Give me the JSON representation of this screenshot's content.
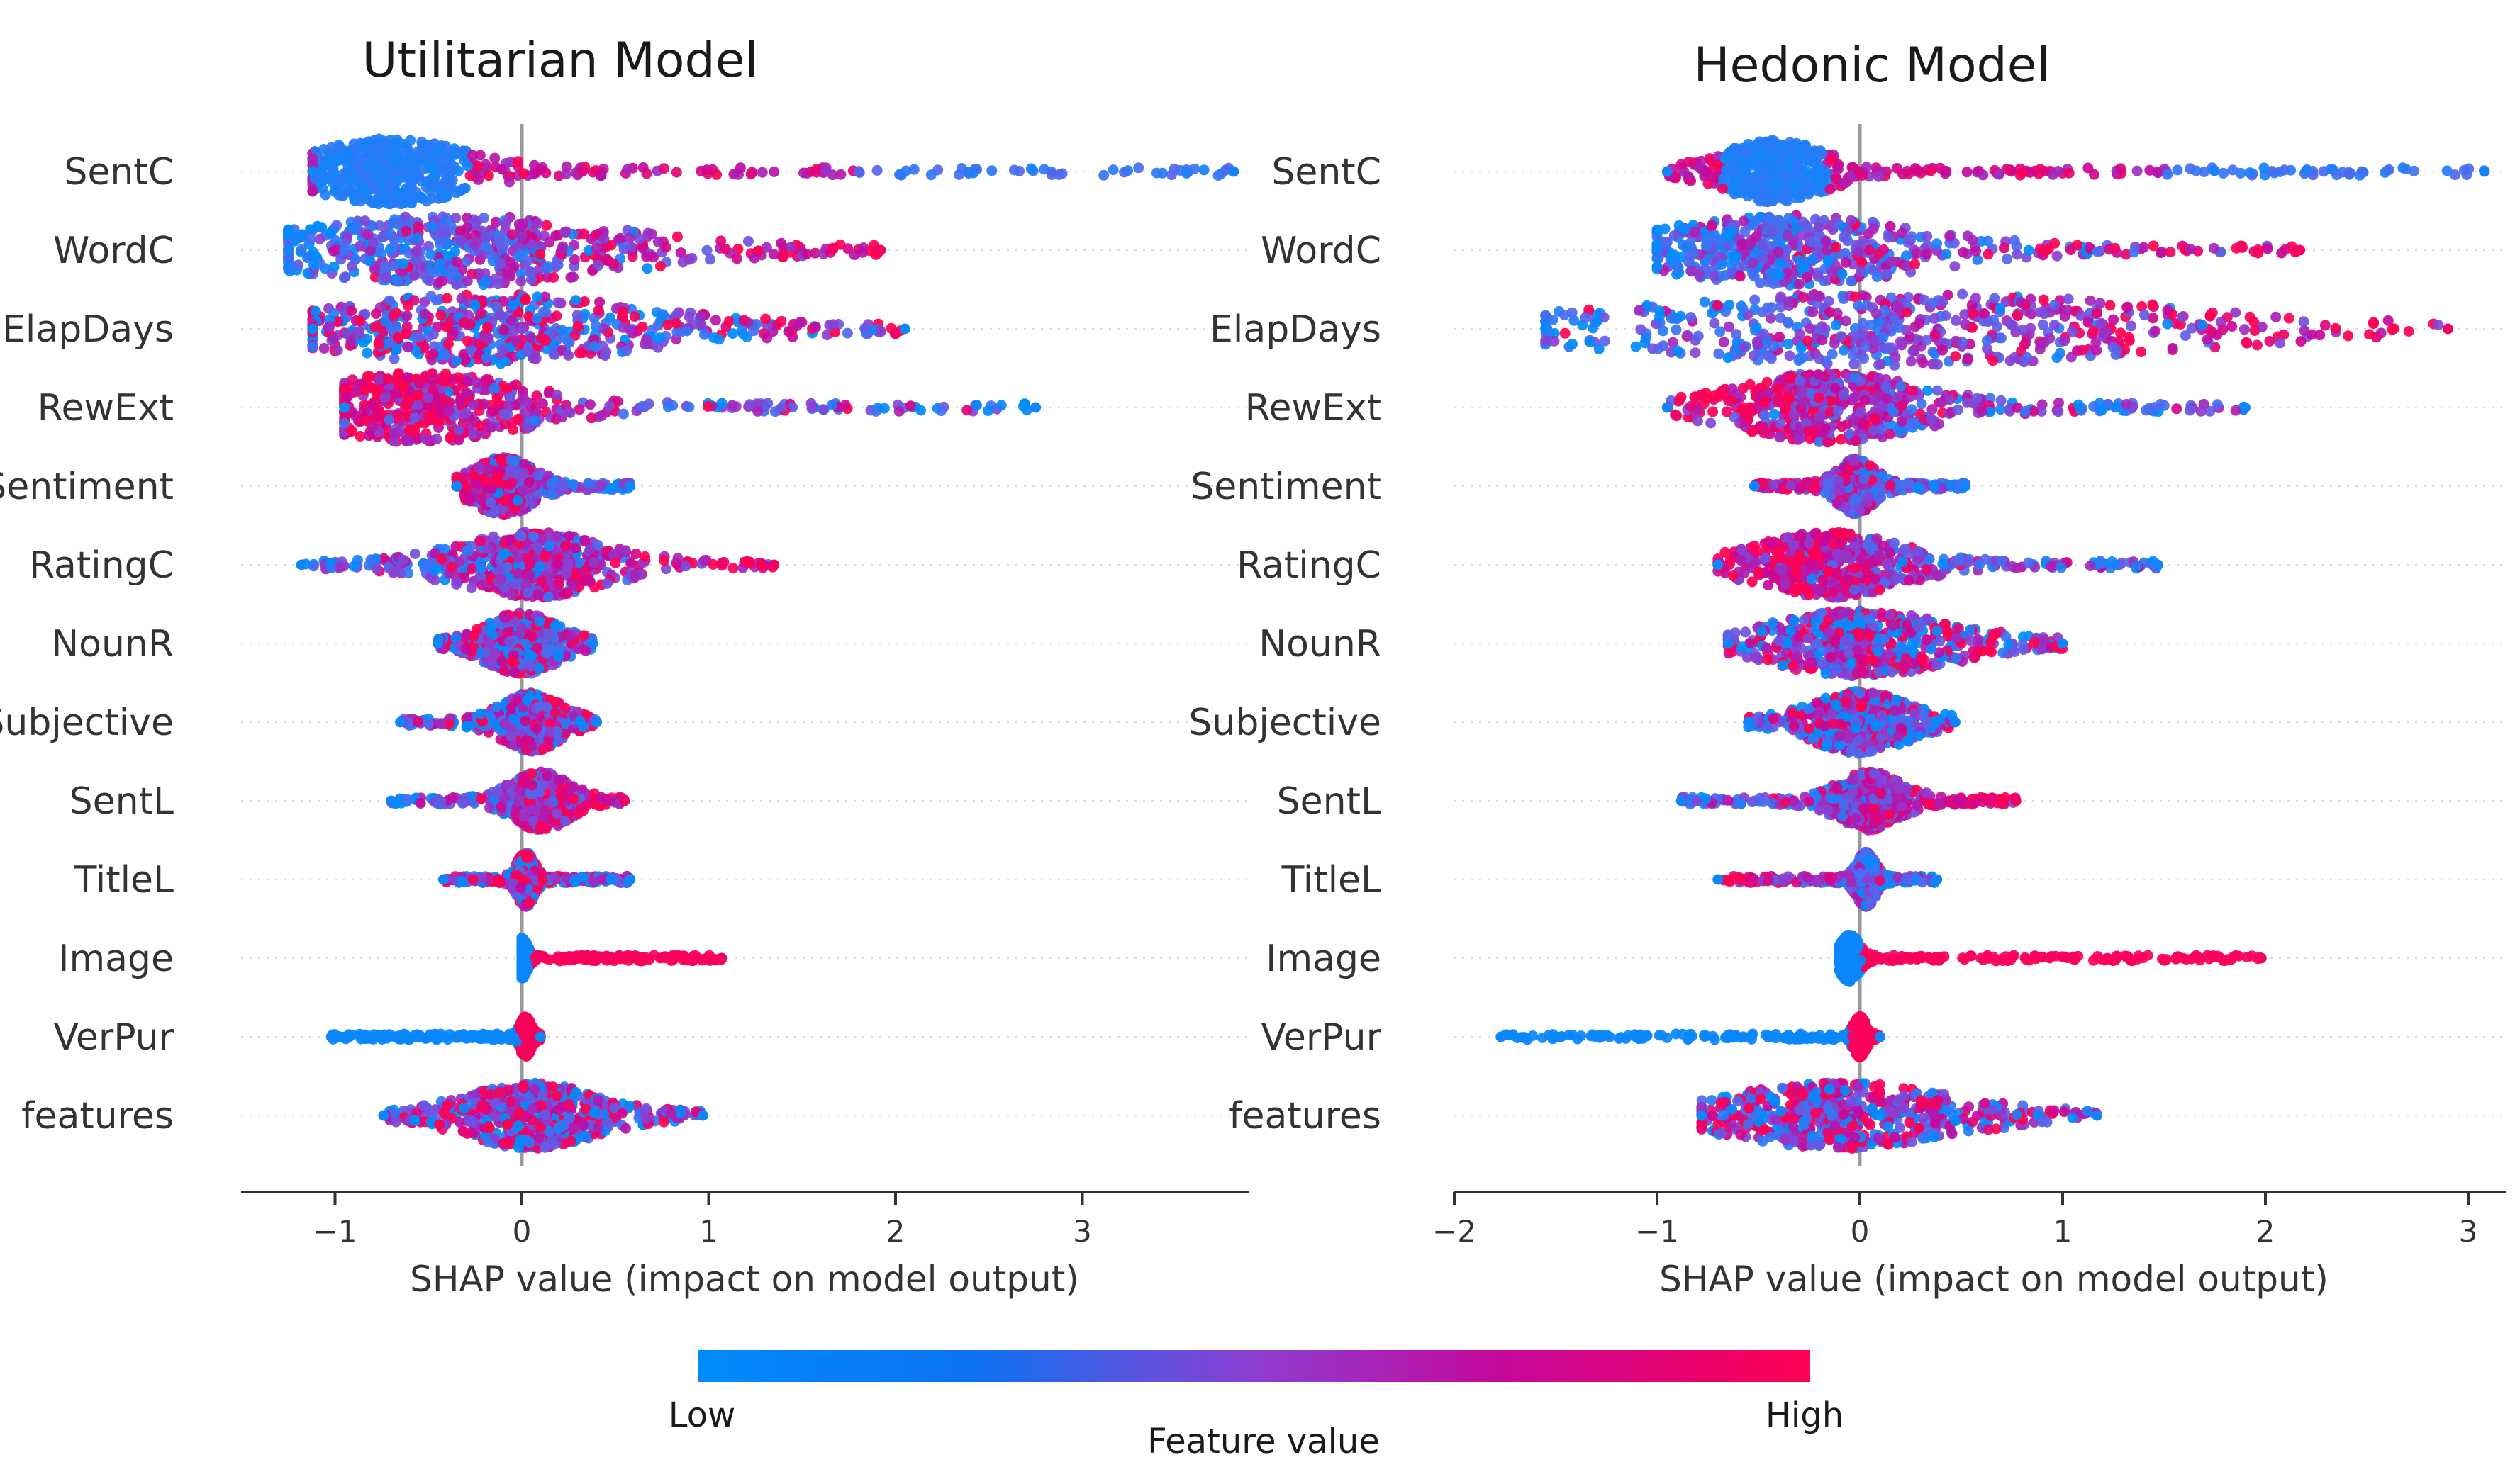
{
  "chart_data": [
    {
      "type": "scatter",
      "subtype": "shap-beeswarm",
      "title": "Utilitarian Model",
      "xlabel": "SHAP value (impact on model output)",
      "xlim": [
        -1.5,
        3.88
      ],
      "xticks": [
        -1,
        0,
        1,
        2,
        3
      ],
      "xtick_labels": [
        "−1",
        "0",
        "1",
        "2",
        "3"
      ],
      "zero_line": 0,
      "grid": "dotted horizontal per feature",
      "features": [
        {
          "name": "SentC",
          "min": -1.12,
          "max": 3.81,
          "mode": -0.7,
          "spread": 0.26,
          "thickness": 0.9,
          "trend": "mixed-low-center"
        },
        {
          "name": "WordC",
          "min": -1.25,
          "max": 1.92,
          "mode": -0.35,
          "spread": 0.55,
          "thickness": 0.95,
          "trend": "increasing"
        },
        {
          "name": "ElapDays",
          "min": -1.12,
          "max": 2.05,
          "mode": -0.2,
          "spread": 0.55,
          "thickness": 0.95,
          "trend": "mixed"
        },
        {
          "name": "RewExt",
          "min": -0.95,
          "max": 2.75,
          "mode": -0.55,
          "spread": 0.35,
          "thickness": 0.95,
          "trend": "decreasing"
        },
        {
          "name": "Sentiment",
          "min": -0.35,
          "max": 0.58,
          "mode": -0.1,
          "spread": 0.1,
          "thickness": 0.8,
          "trend": "decreasing"
        },
        {
          "name": "RatingC",
          "min": -1.18,
          "max": 1.35,
          "mode": 0.05,
          "spread": 0.25,
          "thickness": 0.9,
          "trend": "increasing"
        },
        {
          "name": "NounR",
          "min": -0.45,
          "max": 0.38,
          "mode": 0.0,
          "spread": 0.12,
          "thickness": 0.85,
          "trend": "mixed"
        },
        {
          "name": "Subjective",
          "min": -0.65,
          "max": 0.4,
          "mode": 0.05,
          "spread": 0.1,
          "thickness": 0.8,
          "trend": "mixed"
        },
        {
          "name": "SentL",
          "min": -0.7,
          "max": 0.55,
          "mode": 0.1,
          "spread": 0.1,
          "thickness": 0.8,
          "trend": "increasing"
        },
        {
          "name": "TitleL",
          "min": -0.42,
          "max": 0.58,
          "mode": 0.02,
          "spread": 0.03,
          "thickness": 0.75,
          "trend": "mixed"
        },
        {
          "name": "Image",
          "min": 0.0,
          "max": 1.07,
          "mode": 0.0,
          "spread": 0.02,
          "thickness": 0.55,
          "trend": "split"
        },
        {
          "name": "VerPur",
          "min": -1.02,
          "max": 0.1,
          "mode": 0.02,
          "spread": 0.02,
          "thickness": 0.55,
          "trend": "split-reverse"
        },
        {
          "name": "features",
          "min": -0.74,
          "max": 0.97,
          "mode": 0.05,
          "spread": 0.22,
          "thickness": 0.9,
          "trend": "mixed"
        }
      ]
    },
    {
      "type": "scatter",
      "subtype": "shap-beeswarm",
      "title": "Hedonic Model",
      "xlabel": "SHAP value (impact on model output)",
      "xlim": [
        -2.0,
        3.2
      ],
      "xticks": [
        -2,
        -1,
        0,
        1,
        2,
        3
      ],
      "xtick_labels": [
        "−2",
        "−1",
        "0",
        "1",
        "2",
        "3"
      ],
      "zero_line": 0,
      "grid": "dotted horizontal per feature",
      "features": [
        {
          "name": "SentC",
          "min": -0.95,
          "max": 3.08,
          "mode": -0.42,
          "spread": 0.16,
          "thickness": 0.85,
          "trend": "mixed-low-center"
        },
        {
          "name": "WordC",
          "min": -1.0,
          "max": 2.17,
          "mode": -0.35,
          "spread": 0.4,
          "thickness": 0.95,
          "trend": "increasing"
        },
        {
          "name": "ElapDays",
          "min": -1.55,
          "max": 2.9,
          "mode": 0.2,
          "spread": 0.85,
          "thickness": 1.0,
          "trend": "increasing"
        },
        {
          "name": "RewExt",
          "min": -0.95,
          "max": 1.9,
          "mode": -0.15,
          "spread": 0.28,
          "thickness": 0.95,
          "trend": "decreasing"
        },
        {
          "name": "Sentiment",
          "min": -0.52,
          "max": 0.52,
          "mode": -0.02,
          "spread": 0.06,
          "thickness": 0.75,
          "trend": "decreasing"
        },
        {
          "name": "RatingC",
          "min": -0.7,
          "max": 1.47,
          "mode": -0.15,
          "spread": 0.22,
          "thickness": 0.9,
          "trend": "decreasing"
        },
        {
          "name": "NounR",
          "min": -0.65,
          "max": 1.0,
          "mode": 0.0,
          "spread": 0.28,
          "thickness": 0.9,
          "trend": "mixed"
        },
        {
          "name": "Subjective",
          "min": -0.55,
          "max": 0.47,
          "mode": 0.0,
          "spread": 0.15,
          "thickness": 0.85,
          "trend": "mixed"
        },
        {
          "name": "SentL",
          "min": -0.88,
          "max": 0.77,
          "mode": 0.05,
          "spread": 0.1,
          "thickness": 0.8,
          "trend": "increasing"
        },
        {
          "name": "TitleL",
          "min": -0.7,
          "max": 0.38,
          "mode": 0.03,
          "spread": 0.03,
          "thickness": 0.75,
          "trend": "decreasing"
        },
        {
          "name": "Image",
          "min": -0.1,
          "max": 1.98,
          "mode": -0.05,
          "spread": 0.03,
          "thickness": 0.65,
          "trend": "split"
        },
        {
          "name": "VerPur",
          "min": -1.77,
          "max": 0.1,
          "mode": 0.0,
          "spread": 0.02,
          "thickness": 0.55,
          "trend": "split-reverse"
        },
        {
          "name": "features",
          "min": -0.78,
          "max": 1.17,
          "mode": -0.1,
          "spread": 0.35,
          "thickness": 0.9,
          "trend": "mixed"
        }
      ]
    }
  ],
  "colorbar": {
    "label": "Feature value",
    "low_label": "Low",
    "high_label": "High",
    "colors": [
      "#008bfb",
      "#4b6cf0",
      "#8d3dd1",
      "#c4089c",
      "#ff0052"
    ]
  }
}
